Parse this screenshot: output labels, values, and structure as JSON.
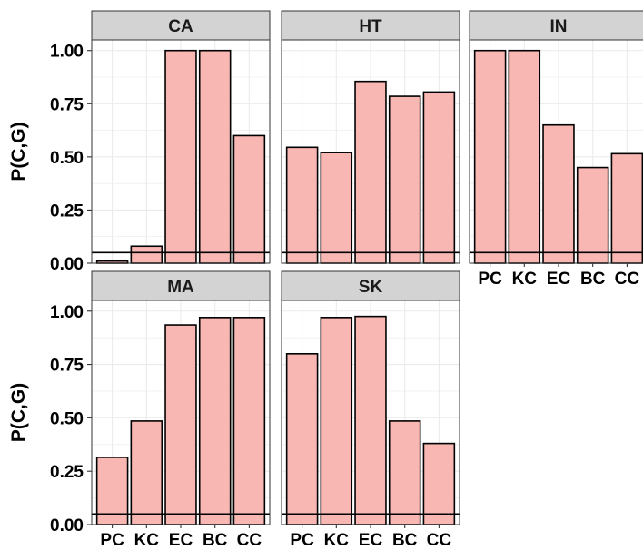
{
  "chart_data": {
    "type": "bar",
    "ylabel": "P(C,G)",
    "ylim": [
      0,
      1.05
    ],
    "y_ticks": [
      "0.00",
      "0.25",
      "0.50",
      "0.75",
      "1.00"
    ],
    "categories": [
      "PC",
      "KC",
      "EC",
      "BC",
      "CC"
    ],
    "reference_line": 0.05,
    "grid": true,
    "panels": [
      {
        "name": "CA",
        "values": [
          0.01,
          0.08,
          1.0,
          1.0,
          0.6
        ]
      },
      {
        "name": "HT",
        "values": [
          0.545,
          0.52,
          0.855,
          0.785,
          0.805
        ]
      },
      {
        "name": "IN",
        "values": [
          1.0,
          1.0,
          0.65,
          0.45,
          0.515
        ]
      },
      {
        "name": "MA",
        "values": [
          0.315,
          0.485,
          0.935,
          0.97,
          0.97
        ]
      },
      {
        "name": "SK",
        "values": [
          0.8,
          0.97,
          0.975,
          0.485,
          0.38
        ]
      }
    ]
  },
  "colors": {
    "bar_fill": "#f9b7b3",
    "bar_stroke": "#000000",
    "strip_fill": "#d3d3d3",
    "grid": "#ebebeb",
    "panel_border": "#333333"
  }
}
